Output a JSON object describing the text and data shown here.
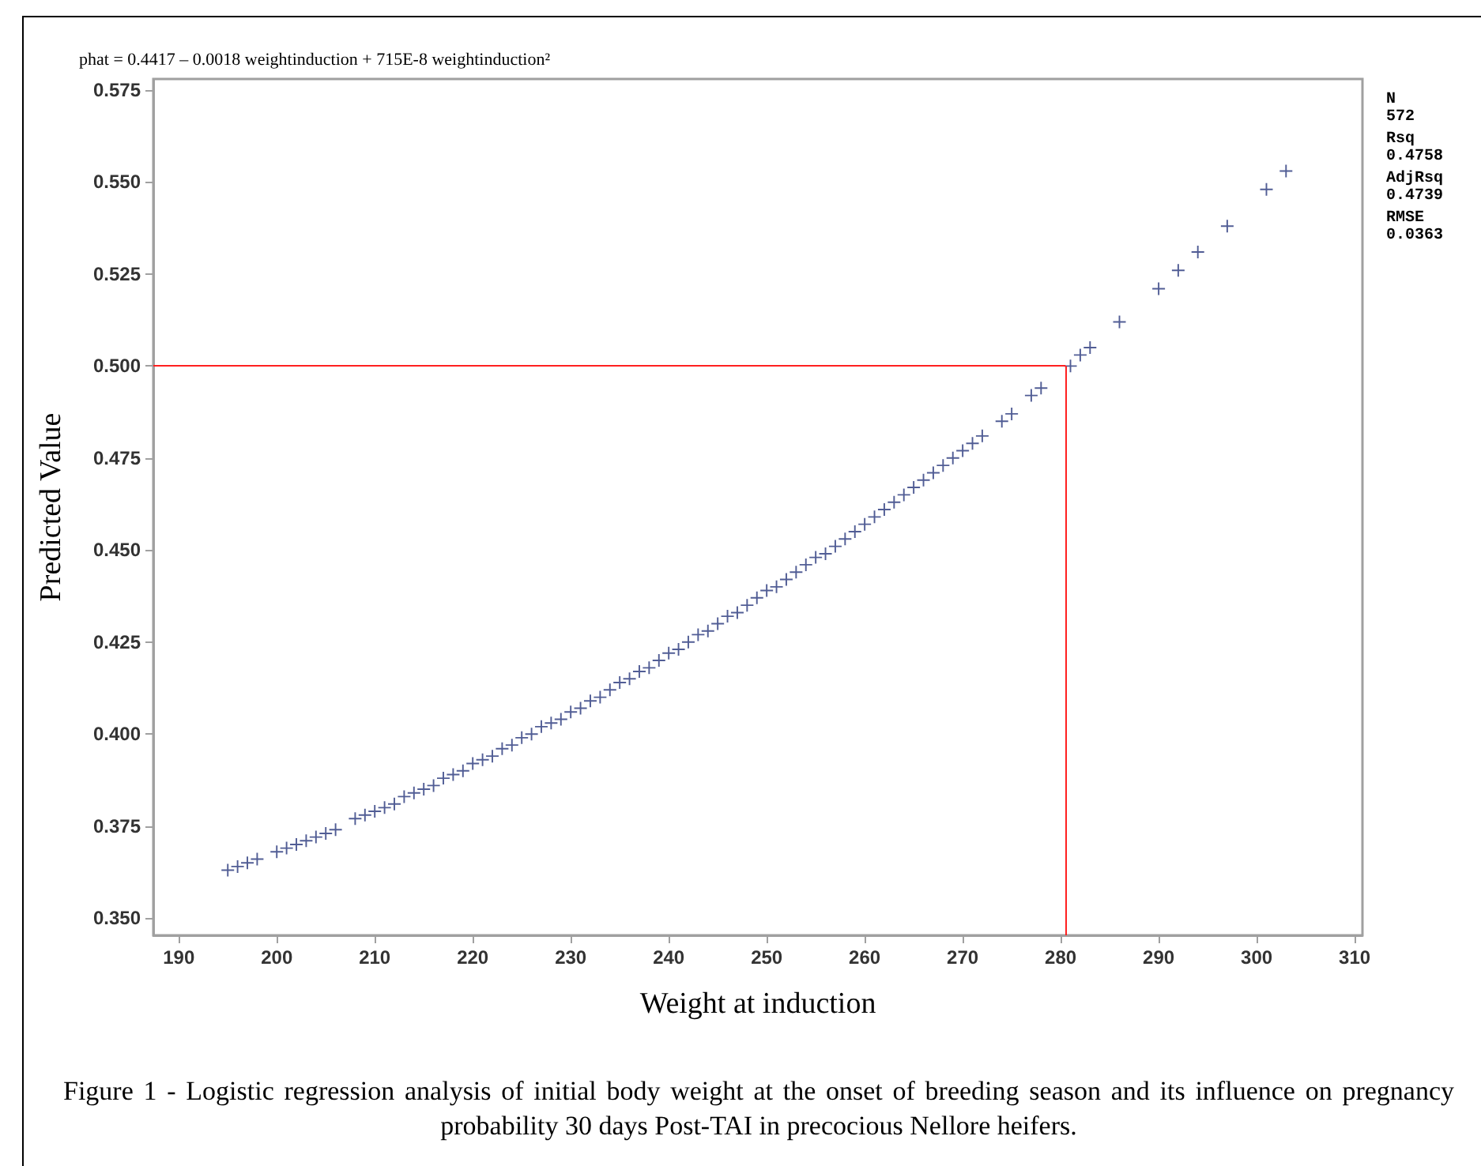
{
  "chart_data": {
    "type": "scatter",
    "title": "phat = 0.4417 – 0.0018 weightinduction + 715E-8 weightinduction²",
    "xlabel": "Weight at induction",
    "ylabel": "Predicted Value",
    "annotations": [
      "N",
      "572",
      "Rsq",
      "0.4758",
      "AdjRsq",
      "0.4739",
      "RMSE",
      "0.0363",
      "Figure 1 - Logistic regression analysis of initial body weight at the onset of breeding season and its influence on pregnancy probability 30 days Post-TAI in precocious Nellore heifers."
    ],
    "x": [
      195,
      196,
      197,
      198,
      200,
      201,
      202,
      203,
      204,
      205,
      206,
      208,
      209,
      210,
      211,
      212,
      213,
      214,
      215,
      216,
      217,
      218,
      219,
      220,
      221,
      222,
      223,
      224,
      225,
      226,
      227,
      228,
      229,
      230,
      231,
      232,
      233,
      234,
      235,
      236,
      237,
      238,
      239,
      240,
      241,
      242,
      243,
      244,
      245,
      246,
      247,
      248,
      249,
      250,
      251,
      252,
      253,
      254,
      255,
      256,
      257,
      258,
      259,
      260,
      261,
      262,
      263,
      264,
      265,
      266,
      267,
      268,
      269,
      270,
      271,
      272,
      274,
      275,
      277,
      278,
      281,
      282,
      283,
      286,
      290,
      292,
      294,
      297,
      301,
      303
    ],
    "series": [
      {
        "color": "#26347a",
        "values": [
          0.363,
          0.364,
          0.365,
          0.366,
          0.368,
          0.369,
          0.37,
          0.371,
          0.372,
          0.373,
          0.374,
          0.377,
          0.378,
          0.379,
          0.38,
          0.381,
          0.383,
          0.384,
          0.385,
          0.386,
          0.388,
          0.389,
          0.39,
          0.392,
          0.393,
          0.394,
          0.396,
          0.397,
          0.399,
          0.4,
          0.402,
          0.403,
          0.404,
          0.406,
          0.407,
          0.409,
          0.41,
          0.412,
          0.414,
          0.415,
          0.417,
          0.418,
          0.42,
          0.422,
          0.423,
          0.425,
          0.427,
          0.428,
          0.43,
          0.432,
          0.433,
          0.435,
          0.437,
          0.439,
          0.44,
          0.442,
          0.444,
          0.446,
          0.448,
          0.449,
          0.451,
          0.453,
          0.455,
          0.457,
          0.459,
          0.461,
          0.463,
          0.465,
          0.467,
          0.469,
          0.471,
          0.473,
          0.475,
          0.477,
          0.479,
          0.481,
          0.485,
          0.487,
          0.492,
          0.494,
          0.5,
          0.503,
          0.505,
          0.512,
          0.521,
          0.526,
          0.531,
          0.538,
          0.548,
          0.553
        ]
      }
    ],
    "marker": "cross",
    "grid": false,
    "xlim": [
      187.4,
      310.8
    ],
    "xticks": [
      190,
      200,
      210,
      220,
      230,
      240,
      250,
      260,
      270,
      280,
      290,
      300,
      310
    ],
    "ylim": [
      0.3453,
      0.578
    ],
    "yticks": [
      {
        "value": 0.35,
        "label": "0.350"
      },
      {
        "value": 0.375,
        "label": "0.375"
      },
      {
        "value": 0.4,
        "label": "0.400"
      },
      {
        "value": 0.425,
        "label": "0.425"
      },
      {
        "value": 0.45,
        "label": "0.450"
      },
      {
        "value": 0.475,
        "label": "0.475"
      },
      {
        "value": 0.5,
        "label": "0.500"
      },
      {
        "value": 0.525,
        "label": "0.525"
      },
      {
        "value": 0.55,
        "label": "0.550"
      },
      {
        "value": 0.575,
        "label": "0.575"
      }
    ],
    "ref_lines": [
      {
        "axis": "y",
        "value": 0.5,
        "color": "#ff2020"
      },
      {
        "axis": "x",
        "value": 280.5,
        "color": "#ff2020"
      }
    ]
  }
}
